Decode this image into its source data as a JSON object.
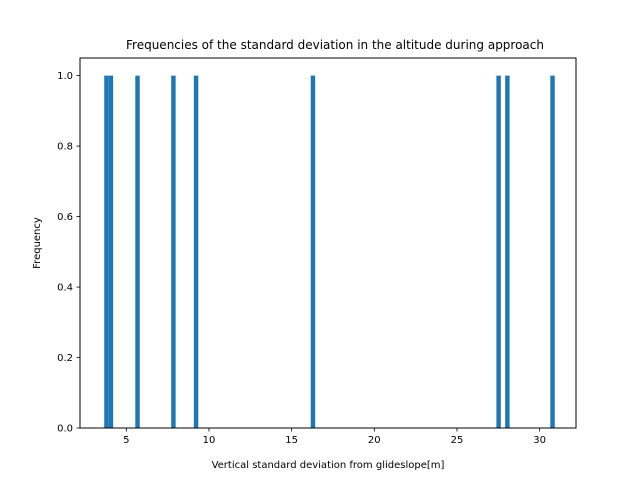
{
  "chart_data": {
    "type": "bar",
    "title": "Frequencies of the standard deviation in the altitude during approach",
    "xlabel": "Vertical standard deviation from glideslope[m]",
    "ylabel": "Frequency",
    "xlim": [
      2.2,
      32.2
    ],
    "ylim": [
      0,
      1.05
    ],
    "xticks": [
      5,
      10,
      15,
      20,
      25,
      30
    ],
    "yticks": [
      0.0,
      0.2,
      0.4,
      0.6,
      0.8,
      1.0
    ],
    "bin_width": 0.27,
    "bar_color": "#1f77b4",
    "grid": false,
    "legend": "none",
    "series": [
      {
        "x": [
          3.8,
          4.07,
          5.68,
          7.85,
          9.22,
          16.29,
          27.52,
          28.05,
          30.78
        ],
        "values": [
          1,
          1,
          1,
          1,
          1,
          1,
          1,
          1,
          1
        ]
      }
    ]
  }
}
